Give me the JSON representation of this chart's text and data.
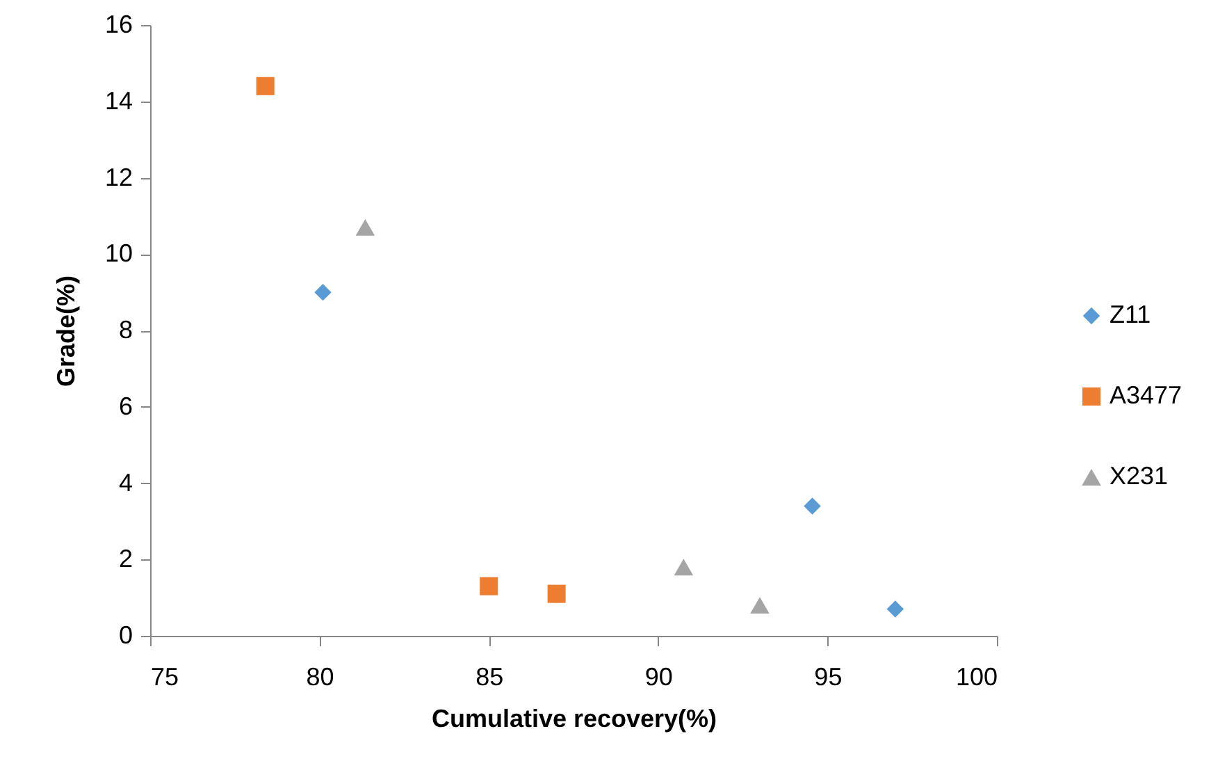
{
  "chart_data": {
    "type": "scatter",
    "xlabel": "Cumulative  recovery(%)",
    "ylabel": "Grade(%)",
    "xlim": [
      75,
      100
    ],
    "xticks": [
      75,
      80,
      85,
      90,
      95,
      100
    ],
    "ylim": [
      0,
      16
    ],
    "yticks": [
      0,
      2,
      4,
      6,
      8,
      10,
      12,
      14,
      16
    ],
    "grid": false,
    "legend": "right",
    "series": [
      {
        "name": "Z11",
        "color": "#5b9bd5",
        "marker": "diamond",
        "x": [
          80.1,
          94.55,
          97.0
        ],
        "values": [
          9.0,
          3.4,
          0.7
        ]
      },
      {
        "name": "A3477",
        "color": "#ed7d31",
        "marker": "square",
        "x": [
          78.4,
          85.0,
          87.0
        ],
        "values": [
          14.4,
          1.3,
          1.1
        ]
      },
      {
        "name": "X231",
        "color": "#a5a5a5",
        "marker": "triangle",
        "x": [
          81.35,
          90.75,
          93.0
        ],
        "values": [
          10.7,
          1.8,
          0.8
        ]
      }
    ]
  }
}
